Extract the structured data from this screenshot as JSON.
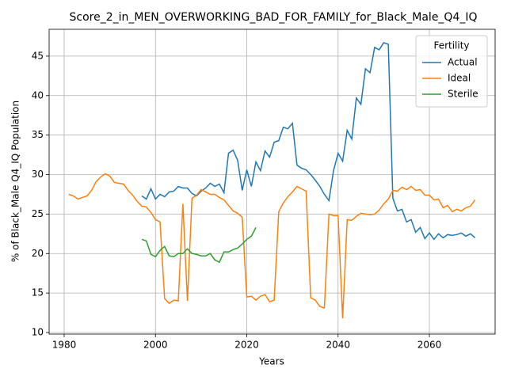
{
  "chart_data": {
    "type": "line",
    "title": "Score_2_in_MEN_OVERWORKING_BAD_FOR_FAMILY_for_Black_Male_Q4_IQ",
    "xlabel": "Years",
    "ylabel": "% of Black_Male Q4_IQ Population",
    "legend_title": "Fertility",
    "legend": "upper right",
    "grid": true,
    "xlim": [
      1976.7,
      2074.4
    ],
    "ylim": [
      9.8,
      48.4
    ],
    "xticks": [
      1980,
      2000,
      2020,
      2040,
      2060
    ],
    "yticks": [
      10,
      15,
      20,
      25,
      30,
      35,
      40,
      45
    ],
    "x": [
      1981,
      1982,
      1983,
      1984,
      1985,
      1986,
      1987,
      1988,
      1989,
      1990,
      1991,
      1992,
      1993,
      1994,
      1995,
      1996,
      1997,
      1998,
      1999,
      2000,
      2001,
      2002,
      2003,
      2004,
      2005,
      2006,
      2007,
      2008,
      2009,
      2010,
      2011,
      2012,
      2013,
      2014,
      2015,
      2016,
      2017,
      2018,
      2019,
      2020,
      2021,
      2022,
      2023,
      2024,
      2025,
      2026,
      2027,
      2028,
      2029,
      2030,
      2031,
      2032,
      2033,
      2034,
      2035,
      2036,
      2037,
      2038,
      2039,
      2040,
      2041,
      2042,
      2043,
      2044,
      2045,
      2046,
      2047,
      2048,
      2049,
      2050,
      2051,
      2052,
      2053,
      2054,
      2055,
      2056,
      2057,
      2058,
      2059,
      2060,
      2061,
      2062,
      2063,
      2064,
      2065,
      2066,
      2067,
      2068,
      2069,
      2070
    ],
    "series": [
      {
        "name": "Actual",
        "color": "#1f77b4",
        "values": [
          null,
          null,
          null,
          null,
          null,
          null,
          null,
          null,
          null,
          null,
          null,
          null,
          null,
          null,
          null,
          null,
          27.3,
          26.9,
          28.2,
          26.9,
          27.5,
          27.2,
          27.8,
          27.9,
          28.5,
          28.3,
          28.3,
          27.6,
          27.3,
          27.9,
          28.3,
          28.9,
          28.5,
          28.8,
          27.7,
          32.7,
          33.1,
          31.8,
          28.0,
          30.6,
          28.5,
          31.6,
          30.5,
          33.0,
          32.2,
          34.1,
          34.3,
          36.0,
          35.8,
          36.5,
          31.2,
          30.8,
          30.6,
          30.0,
          29.3,
          28.5,
          27.5,
          26.7,
          30.5,
          32.7,
          31.7,
          35.6,
          34.5,
          39.7,
          38.9,
          43.4,
          42.9,
          46.1,
          45.8,
          46.7,
          46.5,
          27.0,
          25.4,
          25.6,
          24.0,
          24.3,
          22.7,
          23.3,
          21.9,
          22.6,
          21.8,
          22.5,
          22.0,
          22.4,
          22.3,
          22.4,
          22.6,
          22.2,
          22.5,
          22.0
        ]
      },
      {
        "name": "Ideal",
        "color": "#ff7f0e",
        "values": [
          27.5,
          27.3,
          26.9,
          27.1,
          27.3,
          28.0,
          29.1,
          29.7,
          30.1,
          29.8,
          29.0,
          28.9,
          28.8,
          28.0,
          27.4,
          26.6,
          26.0,
          25.9,
          25.2,
          24.3,
          24.0,
          14.3,
          13.7,
          14.1,
          14.0,
          26.3,
          14.0,
          27.0,
          27.4,
          28.1,
          27.8,
          27.5,
          27.5,
          27.1,
          26.8,
          26.1,
          25.4,
          25.1,
          24.6,
          14.5,
          14.6,
          14.1,
          14.6,
          14.8,
          13.9,
          14.1,
          25.3,
          26.4,
          27.2,
          27.8,
          28.5,
          28.2,
          27.9,
          14.4,
          14.1,
          13.3,
          13.1,
          25.0,
          24.8,
          24.8,
          11.8,
          24.3,
          24.2,
          24.7,
          25.1,
          25.0,
          24.9,
          25.0,
          25.5,
          26.3,
          26.9,
          28.0,
          27.9,
          28.4,
          28.1,
          28.5,
          28.0,
          28.1,
          27.4,
          27.4,
          26.8,
          26.9,
          25.8,
          26.1,
          25.3,
          25.6,
          25.4,
          25.8,
          26.0,
          26.8
        ]
      },
      {
        "name": "Sterile",
        "color": "#2ca02c",
        "values": [
          null,
          null,
          null,
          null,
          null,
          null,
          null,
          null,
          null,
          null,
          null,
          null,
          null,
          null,
          null,
          null,
          21.8,
          21.6,
          19.9,
          19.6,
          20.4,
          20.9,
          19.7,
          19.6,
          20.0,
          20.0,
          20.6,
          20.0,
          19.9,
          19.7,
          19.7,
          20.0,
          19.2,
          18.9,
          20.2,
          20.2,
          20.5,
          20.7,
          21.2,
          21.8,
          22.2,
          23.3,
          null,
          null,
          null,
          null,
          null,
          null,
          null,
          null,
          null,
          null,
          null,
          null,
          null,
          null,
          null,
          null,
          null,
          null,
          null,
          null,
          null,
          null,
          null,
          null,
          null,
          null,
          null,
          null,
          null,
          null,
          null,
          null,
          null,
          null,
          null,
          null,
          null,
          null,
          null,
          null,
          null,
          null,
          null,
          null,
          null,
          null,
          null,
          null
        ]
      }
    ]
  }
}
